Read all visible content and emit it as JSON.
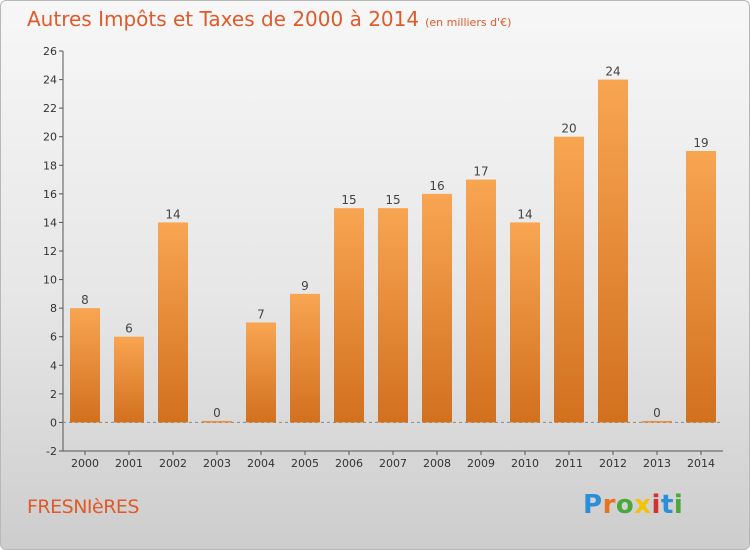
{
  "header": {
    "title": "Autres Impôts et Taxes de 2000 à 2014",
    "subtitle": "(en milliers d'€)"
  },
  "footer": {
    "commune": "FRESNIèRES",
    "logo_text": "Proxiti"
  },
  "colors": {
    "accent": "#e05a2a",
    "bar_light": "#f8a552",
    "bar_dark": "#d2701e"
  },
  "chart_data": {
    "type": "bar",
    "categories": [
      "2000",
      "2001",
      "2002",
      "2003",
      "2004",
      "2005",
      "2006",
      "2007",
      "2008",
      "2009",
      "2010",
      "2011",
      "2012",
      "2013",
      "2014"
    ],
    "values": [
      8,
      6,
      14,
      0,
      7,
      9,
      15,
      15,
      16,
      17,
      14,
      20,
      24,
      0,
      19
    ],
    "title": "Autres Impôts et Taxes de 2000 à 2014",
    "subtitle": "(en milliers d'€)",
    "xlabel": "",
    "ylabel": "",
    "ylim": [
      -2,
      26
    ],
    "yticks": [
      -2,
      0,
      2,
      4,
      6,
      8,
      10,
      12,
      14,
      16,
      18,
      20,
      22,
      24,
      26
    ],
    "grid": false,
    "legend": "none"
  }
}
